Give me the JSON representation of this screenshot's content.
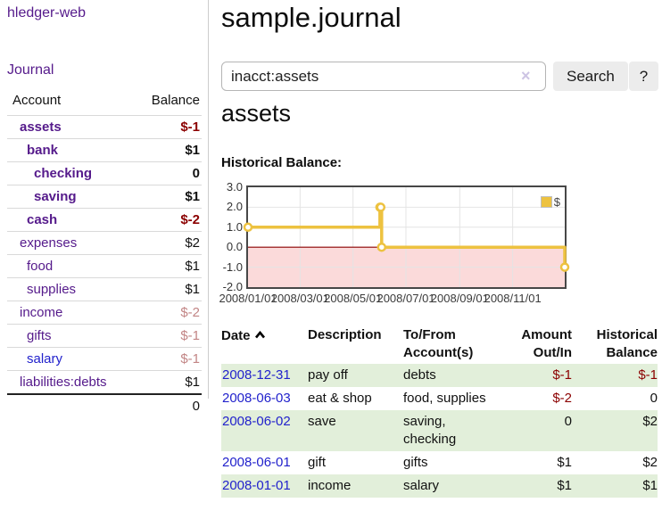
{
  "app": {
    "brand": "hledger-web"
  },
  "sidebar": {
    "journal_link": "Journal",
    "accounts": {
      "col_account": "Account",
      "col_balance": "Balance",
      "rows": [
        {
          "name": "assets",
          "depth": 1,
          "bold": true,
          "balance": "$-1",
          "balance_style": "neg-strong",
          "link": "visited"
        },
        {
          "name": "bank",
          "depth": 2,
          "bold": true,
          "balance": "$1",
          "balance_style": "pos",
          "link": "visited"
        },
        {
          "name": "checking",
          "depth": 3,
          "bold": true,
          "balance": "0",
          "balance_style": "pos",
          "link": "visited"
        },
        {
          "name": "saving",
          "depth": 3,
          "bold": true,
          "balance": "$1",
          "balance_style": "pos",
          "link": "visited"
        },
        {
          "name": "cash",
          "depth": 2,
          "bold": true,
          "balance": "$-2",
          "balance_style": "neg-strong",
          "link": "visited"
        },
        {
          "name": "expenses",
          "depth": 1,
          "bold": false,
          "balance": "$2",
          "balance_style": "pos",
          "link": "visited"
        },
        {
          "name": "food",
          "depth": 2,
          "bold": false,
          "balance": "$1",
          "balance_style": "pos",
          "link": "visited"
        },
        {
          "name": "supplies",
          "depth": 2,
          "bold": false,
          "balance": "$1",
          "balance_style": "pos",
          "link": "visited"
        },
        {
          "name": "income",
          "depth": 1,
          "bold": false,
          "balance": "$-2",
          "balance_style": "neg-muted",
          "link": "visited"
        },
        {
          "name": "gifts",
          "depth": 2,
          "bold": false,
          "balance": "$-1",
          "balance_style": "neg-muted",
          "link": "visited"
        },
        {
          "name": "salary",
          "depth": 2,
          "bold": false,
          "balance": "$-1",
          "balance_style": "neg-muted",
          "link": "unvisited"
        },
        {
          "name": "liabilities:debts",
          "depth": 1,
          "bold": false,
          "balance": "$1",
          "balance_style": "pos",
          "link": "visited"
        }
      ],
      "total": "0"
    }
  },
  "main": {
    "title": "sample.journal",
    "search": {
      "value": "inacct:assets",
      "clear_icon": "×",
      "search_button": "Search",
      "help_button": "?"
    },
    "account_heading": "assets",
    "chart_heading": "Historical Balance:"
  },
  "chart_data": {
    "type": "line",
    "title": "Historical Balance",
    "style": "step",
    "legend": [
      {
        "label": "$",
        "color": "#edc240"
      }
    ],
    "legend_position": "top-right",
    "x_start": "2008-01-01",
    "x_end": "2008-12-31",
    "ylim": [
      -2,
      3
    ],
    "yticks": [
      {
        "label": "3.0",
        "value": 3
      },
      {
        "label": "2.0",
        "value": 2
      },
      {
        "label": "1.0",
        "value": 1
      },
      {
        "label": "0.0",
        "value": 0
      },
      {
        "label": "-1.0",
        "value": -1
      },
      {
        "label": "-2.0",
        "value": -2
      }
    ],
    "xticks": [
      {
        "label": "2008/01/01",
        "date": "2008-01-01"
      },
      {
        "label": "2008/03/01",
        "date": "2008-03-01"
      },
      {
        "label": "2008/05/01",
        "date": "2008-05-01"
      },
      {
        "label": "2008/07/01",
        "date": "2008-07-01"
      },
      {
        "label": "2008/09/01",
        "date": "2008-09-01"
      },
      {
        "label": "2008/11/01",
        "date": "2008-11-01"
      }
    ],
    "series": [
      {
        "name": "$",
        "points": [
          {
            "date": "2008-01-01",
            "value": 1
          },
          {
            "date": "2008-06-01",
            "value": 2
          },
          {
            "date": "2008-06-02",
            "value": 2
          },
          {
            "date": "2008-06-03",
            "value": 0
          },
          {
            "date": "2008-12-31",
            "value": -1
          }
        ]
      }
    ],
    "colors": {
      "line": "#edc240",
      "zero_line": "#8b0000",
      "negative_region": "#fbdada",
      "grid": "#e4e4e4",
      "border": "#474747"
    },
    "grid": true
  },
  "register": {
    "headers": {
      "date": "Date",
      "description": "Description",
      "accounts": "To/From Account(s)",
      "amount": "Amount Out/In",
      "balance": "Historical Balance"
    },
    "sort": {
      "column": "date",
      "direction": "ascending"
    },
    "rows": [
      {
        "date": "2008-12-31",
        "description": "pay off",
        "accounts": "debts",
        "amount": "$-1",
        "amount_negative": true,
        "balance": "$-1",
        "balance_negative": true
      },
      {
        "date": "2008-06-03",
        "description": "eat & shop",
        "accounts": "food, supplies",
        "amount": "$-2",
        "amount_negative": true,
        "balance": "0",
        "balance_negative": false
      },
      {
        "date": "2008-06-02",
        "description": "save",
        "accounts": "saving, checking",
        "amount": "0",
        "amount_negative": false,
        "balance": "$2",
        "balance_negative": false
      },
      {
        "date": "2008-06-01",
        "description": "gift",
        "accounts": "gifts",
        "amount": "$1",
        "amount_negative": false,
        "balance": "$2",
        "balance_negative": false
      },
      {
        "date": "2008-01-01",
        "description": "income",
        "accounts": "salary",
        "amount": "$1",
        "amount_negative": false,
        "balance": "$1",
        "balance_negative": false
      }
    ]
  }
}
